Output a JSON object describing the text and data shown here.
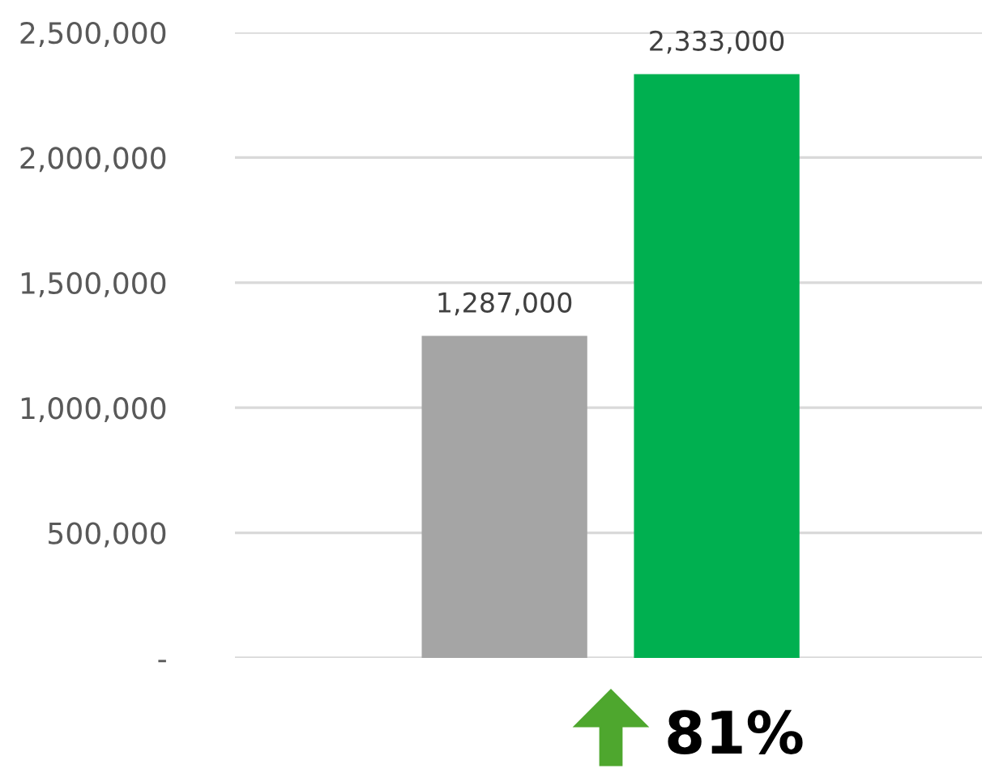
{
  "chart_data": {
    "type": "bar",
    "categories": [
      null,
      null
    ],
    "values": [
      1287000,
      2333000
    ],
    "colors": [
      "#a5a5a5",
      "#00b050"
    ],
    "value_labels": [
      "1,287,000",
      "2,333,000"
    ],
    "ylim": [
      0,
      2500000
    ],
    "yticks": [
      {
        "value": 0,
        "label": "-"
      },
      {
        "value": 500000,
        "label": "500,000"
      },
      {
        "value": 1000000,
        "label": "1,000,000"
      },
      {
        "value": 1500000,
        "label": "1,500,000"
      },
      {
        "value": 2000000,
        "label": "2,000,000"
      },
      {
        "value": 2500000,
        "label": "2,500,000"
      }
    ],
    "grid": "y",
    "annotations": [
      "81%"
    ]
  }
}
